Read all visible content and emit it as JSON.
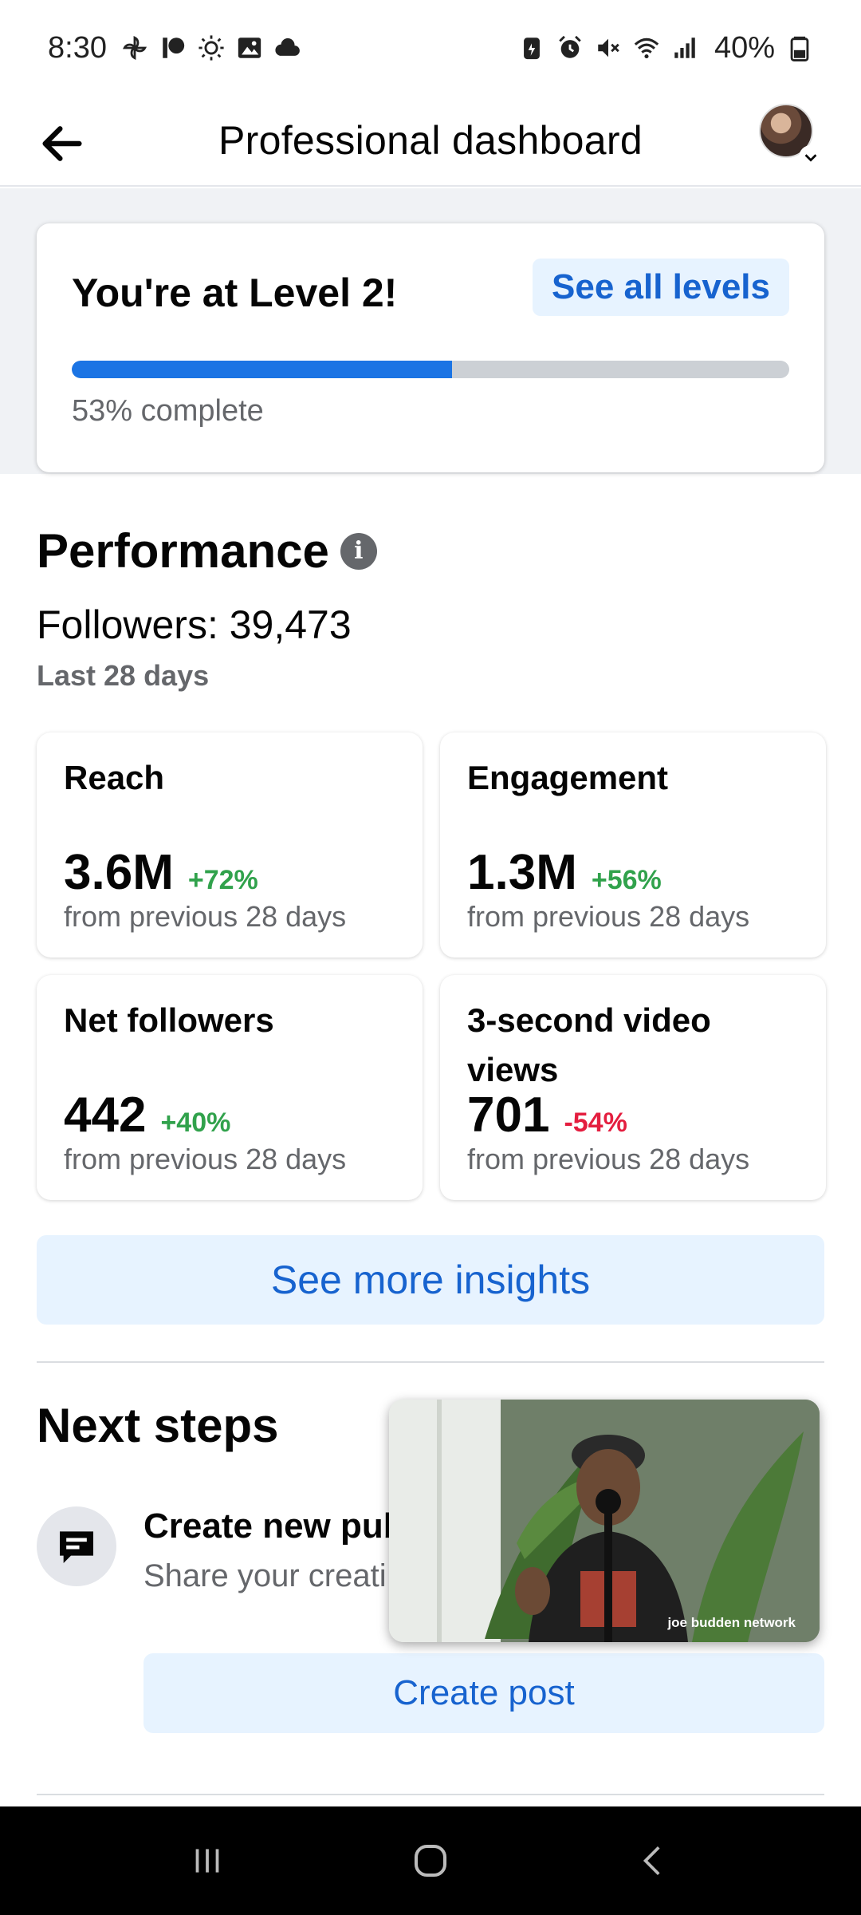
{
  "status_bar": {
    "time": "8:30",
    "battery_percent": "40%",
    "left_icons": [
      "pinwheel-icon",
      "patreon-icon",
      "brightness-icon",
      "gallery-icon",
      "cloud-icon"
    ],
    "right_icons": [
      "battery-saver-icon",
      "alarm-icon",
      "mute-icon",
      "wifi-icon",
      "signal-icon",
      "battery-icon"
    ]
  },
  "header": {
    "title": "Professional dashboard",
    "back_icon": "arrow-left-icon"
  },
  "level_card": {
    "title": "You're at Level 2!",
    "see_all_label": "See all levels",
    "progress_fraction": 0.53,
    "progress_text": "53% complete"
  },
  "performance": {
    "title": "Performance",
    "info_glyph": "i",
    "followers_text": "Followers: 39,473",
    "period": "Last 28 days",
    "metrics": [
      {
        "label": "Reach",
        "value": "3.6M",
        "change": "+72%",
        "trend": "up",
        "sub": "from previous 28 days"
      },
      {
        "label": "Engagement",
        "value": "1.3M",
        "change": "+56%",
        "trend": "up",
        "sub": "from previous 28 days"
      },
      {
        "label": "Net followers",
        "value": "442",
        "change": "+40%",
        "trend": "up",
        "sub": "from previous 28 days"
      },
      {
        "label": "3-second video views",
        "value": "701",
        "change": "-54%",
        "trend": "down",
        "sub": "from previous 28 days"
      }
    ],
    "see_more_label": "See more insights"
  },
  "next_steps": {
    "title": "Next steps",
    "step_title": "Create new pub",
    "step_desc": "Share your creati you create a publi",
    "create_post_label": "Create post"
  },
  "pip_video": {
    "watermark": "joe budden network"
  },
  "colors": {
    "accent_blue": "#1b74e4",
    "button_bg": "#e7f3ff",
    "positive": "#31a24c",
    "negative": "#e41e3f",
    "secondary_text": "#65676b"
  }
}
